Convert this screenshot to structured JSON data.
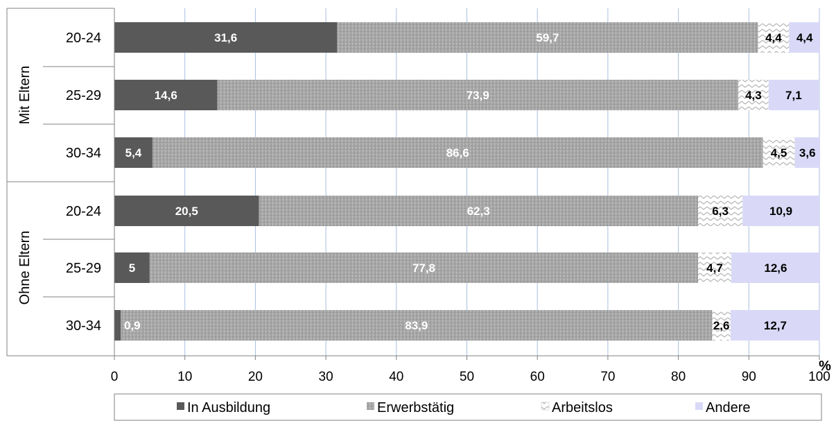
{
  "chart_data": {
    "type": "bar",
    "orientation": "horizontal",
    "stacked": true,
    "groups": [
      {
        "label": "Mit Eltern",
        "categories": [
          "20-24",
          "25-29",
          "30-34"
        ]
      },
      {
        "label": "Ohne Eltern",
        "categories": [
          "20-24",
          "25-29",
          "30-34"
        ]
      }
    ],
    "series": [
      {
        "name": "In Ausbildung",
        "values": [
          31.6,
          14.6,
          5.4,
          20.5,
          5,
          0.9
        ],
        "labels": [
          "31,6",
          "14,6",
          "5,4",
          "20,5",
          "5",
          "0,9"
        ],
        "color": "#595959",
        "label_color": "#ffffff"
      },
      {
        "name": "Erwerbstätig",
        "values": [
          59.7,
          73.9,
          86.6,
          62.3,
          77.8,
          83.9
        ],
        "labels": [
          "59,7",
          "73,9",
          "86,6",
          "62,3",
          "77,8",
          "83,9"
        ],
        "color": "#a6a6a6",
        "label_color": "#ffffff"
      },
      {
        "name": "Arbeitslos",
        "values": [
          4.4,
          4.3,
          4.5,
          6.3,
          4.7,
          2.6
        ],
        "labels": [
          "4,4",
          "4,3",
          "4,5",
          "6,3",
          "4,7",
          "2,6"
        ],
        "color": "#f2f2f2",
        "label_color": "#000000"
      },
      {
        "name": "Andere",
        "values": [
          4.4,
          7.1,
          3.6,
          10.9,
          12.6,
          12.7
        ],
        "labels": [
          "4,4",
          "7,1",
          "3,6",
          "10,9",
          "12,6",
          "12,7"
        ],
        "color": "#d9d9f7",
        "label_color": "#000000"
      }
    ],
    "xlim": [
      0,
      100
    ],
    "x_ticks": [
      "0",
      "10",
      "20",
      "30",
      "40",
      "50",
      "60",
      "70",
      "80",
      "90",
      "100"
    ],
    "xlabel": "%",
    "grid": "vertical",
    "legend_position": "bottom"
  }
}
